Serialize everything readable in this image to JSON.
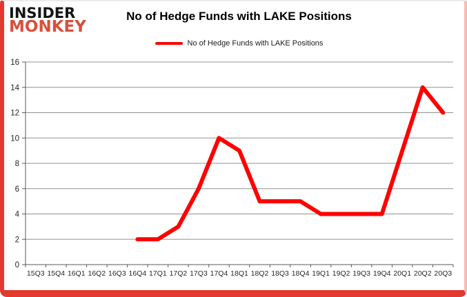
{
  "brand": {
    "line1": "INSIDER",
    "line2": "MONKEY"
  },
  "header": {
    "title": "No of Hedge Funds with LAKE Positions"
  },
  "legend": {
    "label": "No of Hedge Funds with LAKE Positions"
  },
  "colors": {
    "series_red": "#fe0000",
    "grid": "#909090",
    "axis": "#595959",
    "tick_label": "#262626",
    "frame_red": "#e23a2e",
    "logo_black": "#151515",
    "logo_red": "#d8503c"
  },
  "chart_data": {
    "type": "line",
    "title": "No of Hedge Funds with LAKE Positions",
    "xlabel": "",
    "ylabel": "",
    "categories": [
      "15Q3",
      "15Q4",
      "16Q1",
      "16Q2",
      "16Q3",
      "16Q4",
      "17Q1",
      "17Q2",
      "17Q3",
      "17Q4",
      "18Q1",
      "18Q2",
      "18Q3",
      "18Q4",
      "19Q1",
      "19Q2",
      "19Q3",
      "19Q4",
      "20Q1",
      "20Q2",
      "20Q3"
    ],
    "series": [
      {
        "name": "No of Hedge Funds with LAKE Positions",
        "color": "#fe0000",
        "values": [
          null,
          null,
          null,
          null,
          null,
          2,
          2,
          3,
          6,
          10,
          9,
          5,
          5,
          5,
          4,
          4,
          4,
          4,
          9,
          14,
          12
        ]
      }
    ],
    "ylim": [
      0,
      16
    ],
    "yticks": [
      0,
      2,
      4,
      6,
      8,
      10,
      12,
      14,
      16
    ],
    "grid": true,
    "legend_position": "top-center"
  }
}
